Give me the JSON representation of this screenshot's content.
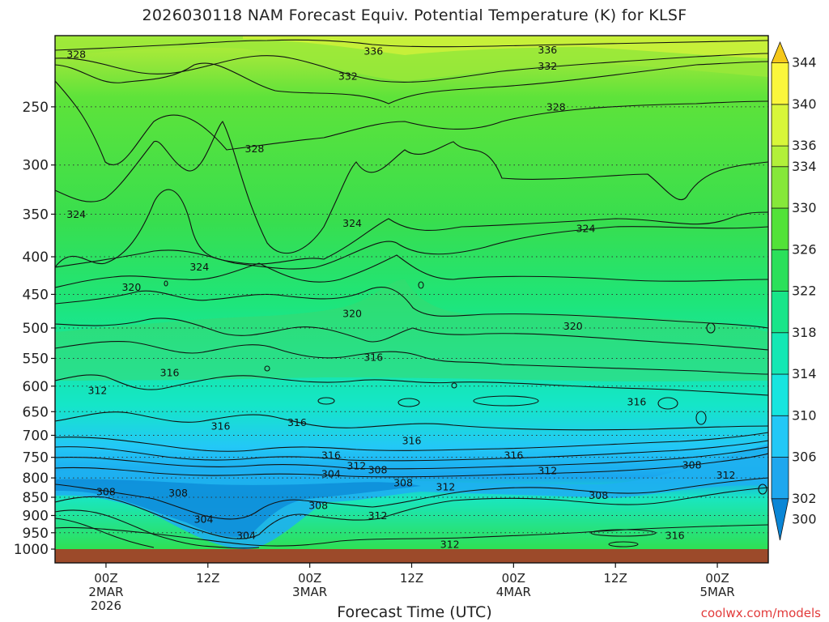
{
  "title": "2026030118 NAM Forecast Equiv. Potential Temperature (K) for KLSF",
  "xlabel": "Forecast Time (UTC)",
  "credit": "coolwx.com/models",
  "colors": {
    "ground": "#9c4a2a",
    "contour": "#111111"
  },
  "chart_data": {
    "type": "heatmap",
    "title": "2026030118 NAM Forecast Equiv. Potential Temperature (K) for KLSF",
    "xlabel": "Forecast Time (UTC)",
    "ylabel": "",
    "yscale": "log",
    "ylim": [
      1000,
      200
    ],
    "y_ticks": [
      250,
      300,
      350,
      400,
      450,
      500,
      550,
      600,
      650,
      700,
      750,
      800,
      850,
      900,
      950,
      1000
    ],
    "x_ticks": [
      {
        "hours": 6,
        "lines": [
          "00Z",
          "2MAR",
          "2026"
        ]
      },
      {
        "hours": 18,
        "lines": [
          "12Z"
        ]
      },
      {
        "hours": 30,
        "lines": [
          "00Z",
          "3MAR"
        ]
      },
      {
        "hours": 42,
        "lines": [
          "12Z"
        ]
      },
      {
        "hours": 54,
        "lines": [
          "00Z",
          "4MAR"
        ]
      },
      {
        "hours": 66,
        "lines": [
          "12Z"
        ]
      },
      {
        "hours": 78,
        "lines": [
          "00Z",
          "5MAR"
        ]
      }
    ],
    "xlim": [
      0,
      84
    ],
    "colorbar": {
      "labels": [
        300,
        302,
        306,
        310,
        314,
        318,
        322,
        326,
        330,
        334,
        336,
        340,
        344
      ],
      "bands": [
        {
          "from": 298,
          "to": 302,
          "color": "#0a86d6"
        },
        {
          "from": 302,
          "to": 306,
          "color": "#1ea7ee"
        },
        {
          "from": 306,
          "to": 310,
          "color": "#23c8f6"
        },
        {
          "from": 310,
          "to": 314,
          "color": "#16e5df"
        },
        {
          "from": 314,
          "to": 318,
          "color": "#14e8b4"
        },
        {
          "from": 318,
          "to": 322,
          "color": "#19e589"
        },
        {
          "from": 322,
          "to": 326,
          "color": "#2be05a"
        },
        {
          "from": 326,
          "to": 330,
          "color": "#52e238"
        },
        {
          "from": 330,
          "to": 334,
          "color": "#86e83a"
        },
        {
          "from": 334,
          "to": 336,
          "color": "#b2f03a"
        },
        {
          "from": 336,
          "to": 340,
          "color": "#d8f63a"
        },
        {
          "from": 340,
          "to": 344,
          "color": "#fbf63c"
        },
        {
          "from": 344,
          "to": 346,
          "color": "#f5c81a"
        }
      ]
    },
    "contour_labels": [
      {
        "value": 328,
        "hours": 2.5,
        "pressure": 212
      },
      {
        "value": 336,
        "hours": 37.5,
        "pressure": 210
      },
      {
        "value": 336,
        "hours": 58,
        "pressure": 209
      },
      {
        "value": 332,
        "hours": 34.5,
        "pressure": 227
      },
      {
        "value": 332,
        "hours": 58,
        "pressure": 220
      },
      {
        "value": 328,
        "hours": 59,
        "pressure": 250
      },
      {
        "value": 328,
        "hours": 23.5,
        "pressure": 285
      },
      {
        "value": 324,
        "hours": 2.5,
        "pressure": 350
      },
      {
        "value": 324,
        "hours": 35,
        "pressure": 360
      },
      {
        "value": 324,
        "hours": 62.5,
        "pressure": 366
      },
      {
        "value": 324,
        "hours": 17,
        "pressure": 413
      },
      {
        "value": 320,
        "hours": 9,
        "pressure": 440
      },
      {
        "value": 320,
        "hours": 35,
        "pressure": 478
      },
      {
        "value": 320,
        "hours": 61,
        "pressure": 497
      },
      {
        "value": 316,
        "hours": 13.5,
        "pressure": 575
      },
      {
        "value": 316,
        "hours": 37.5,
        "pressure": 548
      },
      {
        "value": 316,
        "hours": 68.5,
        "pressure": 630
      },
      {
        "value": 312,
        "hours": 5,
        "pressure": 608
      },
      {
        "value": 316,
        "hours": 19.5,
        "pressure": 680
      },
      {
        "value": 316,
        "hours": 28.5,
        "pressure": 672
      },
      {
        "value": 316,
        "hours": 42,
        "pressure": 712
      },
      {
        "value": 316,
        "hours": 32.5,
        "pressure": 745
      },
      {
        "value": 316,
        "hours": 54,
        "pressure": 745
      },
      {
        "value": 312,
        "hours": 35.5,
        "pressure": 770
      },
      {
        "value": 308,
        "hours": 38,
        "pressure": 780
      },
      {
        "value": 304,
        "hours": 32.5,
        "pressure": 790
      },
      {
        "value": 312,
        "hours": 58,
        "pressure": 782
      },
      {
        "value": 308,
        "hours": 41,
        "pressure": 812
      },
      {
        "value": 312,
        "hours": 46,
        "pressure": 822
      },
      {
        "value": 308,
        "hours": 75,
        "pressure": 768
      },
      {
        "value": 312,
        "hours": 79,
        "pressure": 793
      },
      {
        "value": 308,
        "hours": 6,
        "pressure": 835
      },
      {
        "value": 308,
        "hours": 14.5,
        "pressure": 838
      },
      {
        "value": 308,
        "hours": 64,
        "pressure": 845
      },
      {
        "value": 308,
        "hours": 31,
        "pressure": 872
      },
      {
        "value": 312,
        "hours": 38,
        "pressure": 900
      },
      {
        "value": 304,
        "hours": 17.5,
        "pressure": 910
      },
      {
        "value": 304,
        "hours": 22.5,
        "pressure": 958
      },
      {
        "value": 312,
        "hours": 46.5,
        "pressure": 985
      },
      {
        "value": 316,
        "hours": 73,
        "pressure": 958
      }
    ]
  }
}
